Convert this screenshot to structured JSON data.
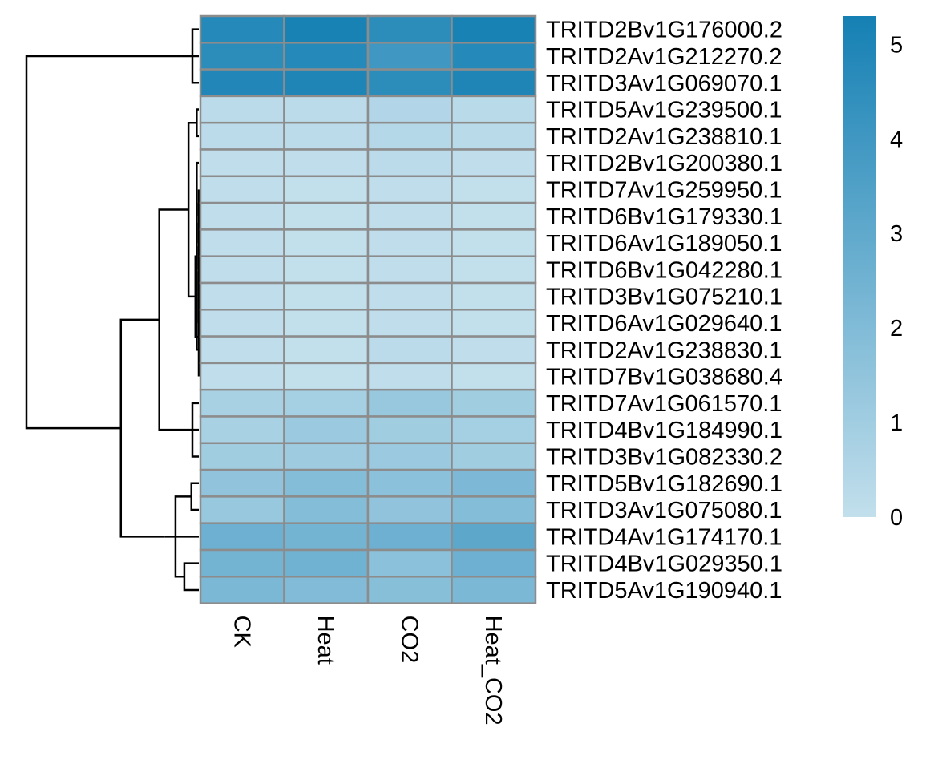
{
  "chart_data": {
    "type": "heatmap",
    "title": "",
    "xlabel": "",
    "ylabel": "",
    "columns": [
      "CK",
      "Heat",
      "CO2",
      "Heat_CO2"
    ],
    "rows": [
      "TRITD2Bv1G176000.2",
      "TRITD2Av1G212270.2",
      "TRITD3Av1G069070.1",
      "TRITD5Av1G239500.1",
      "TRITD2Av1G238810.1",
      "TRITD2Bv1G200380.1",
      "TRITD7Av1G259950.1",
      "TRITD6Bv1G179330.1",
      "TRITD6Av1G189050.1",
      "TRITD6Bv1G042280.1",
      "TRITD3Bv1G075210.1",
      "TRITD6Av1G029640.1",
      "TRITD2Av1G238830.1",
      "TRITD7Bv1G038680.4",
      "TRITD7Av1G061570.1",
      "TRITD4Bv1G184990.1",
      "TRITD3Bv1G082330.2",
      "TRITD5Bv1G182690.1",
      "TRITD3Av1G075080.1",
      "TRITD4Av1G174170.1",
      "TRITD4Bv1G029350.1",
      "TRITD5Av1G190940.1"
    ],
    "values": [
      [
        4.8,
        5.2,
        4.6,
        5.2
      ],
      [
        4.6,
        4.8,
        4.0,
        4.8
      ],
      [
        4.9,
        5.0,
        4.6,
        5.0
      ],
      [
        0.2,
        0.2,
        0.5,
        0.3
      ],
      [
        0.2,
        0.2,
        0.4,
        0.3
      ],
      [
        0.1,
        0.1,
        0.2,
        0.1
      ],
      [
        0.1,
        0.0,
        0.1,
        0.0
      ],
      [
        0.1,
        0.0,
        0.1,
        0.0
      ],
      [
        0.1,
        0.0,
        0.1,
        0.0
      ],
      [
        0.1,
        0.0,
        0.1,
        0.0
      ],
      [
        0.1,
        0.0,
        0.1,
        0.0
      ],
      [
        0.1,
        0.0,
        0.1,
        0.0
      ],
      [
        0.1,
        0.0,
        0.2,
        0.1
      ],
      [
        0.1,
        0.0,
        0.1,
        0.0
      ],
      [
        0.8,
        0.9,
        1.3,
        1.0
      ],
      [
        0.8,
        1.2,
        1.0,
        0.9
      ],
      [
        1.0,
        1.1,
        1.2,
        1.0
      ],
      [
        1.5,
        1.9,
        1.7,
        2.1
      ],
      [
        1.3,
        1.9,
        1.5,
        1.9
      ],
      [
        2.6,
        2.4,
        2.6,
        3.1
      ],
      [
        2.4,
        2.5,
        1.7,
        2.6
      ],
      [
        2.2,
        2.0,
        1.8,
        2.2
      ]
    ],
    "color_scale": {
      "min": 0,
      "max": 5.3,
      "low_color": "#c2dfec",
      "high_color": "#1580b4",
      "ticks": [
        0,
        1,
        2,
        3,
        4,
        5
      ]
    },
    "cell_border_color": "#8c8c8c",
    "row_dendrogram": true,
    "legend_position": "right"
  }
}
